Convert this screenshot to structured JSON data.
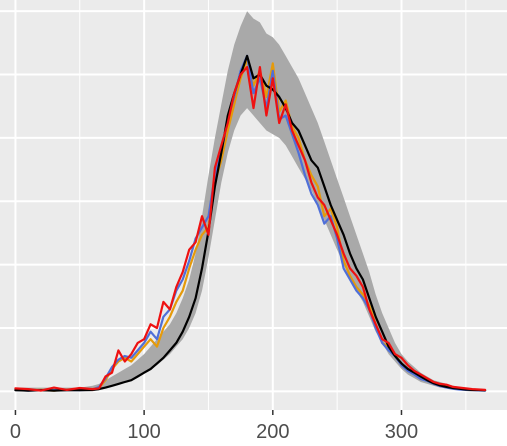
{
  "chart_data": {
    "type": "line",
    "title": "",
    "xlabel": "",
    "ylabel": "",
    "xlim": [
      -12,
      382
    ],
    "ylim": [
      -0.05,
      1.05
    ],
    "x_ticks": [
      0,
      100,
      200,
      300
    ],
    "x_tick_labels": [
      "0",
      "100",
      "200",
      "300"
    ],
    "x_minor_ticks": [
      50,
      150,
      250,
      350
    ],
    "y_grid": [
      0.0,
      0.17,
      0.34,
      0.51,
      0.68,
      0.85,
      1.02
    ],
    "grid": true,
    "legend": "none",
    "background": "#ebebeb",
    "band": {
      "color": "#a9a9a9",
      "x": [
        0,
        10,
        20,
        30,
        40,
        50,
        60,
        65,
        70,
        75,
        80,
        85,
        90,
        95,
        100,
        105,
        110,
        115,
        120,
        125,
        130,
        135,
        140,
        145,
        150,
        155,
        160,
        165,
        170,
        175,
        180,
        185,
        190,
        195,
        200,
        205,
        210,
        215,
        220,
        225,
        230,
        235,
        240,
        245,
        250,
        255,
        260,
        265,
        270,
        275,
        280,
        285,
        290,
        295,
        300,
        305,
        310,
        315,
        320,
        325,
        330,
        335,
        340,
        345,
        350,
        355,
        365
      ],
      "lower": [
        0,
        0,
        0,
        0,
        0,
        0,
        0,
        0.005,
        0.01,
        0.015,
        0.02,
        0.025,
        0.03,
        0.04,
        0.05,
        0.06,
        0.07,
        0.085,
        0.1,
        0.12,
        0.14,
        0.17,
        0.21,
        0.27,
        0.36,
        0.46,
        0.56,
        0.64,
        0.7,
        0.74,
        0.76,
        0.74,
        0.72,
        0.7,
        0.69,
        0.68,
        0.66,
        0.63,
        0.6,
        0.57,
        0.54,
        0.5,
        0.46,
        0.42,
        0.38,
        0.34,
        0.3,
        0.27,
        0.24,
        0.2,
        0.16,
        0.13,
        0.1,
        0.08,
        0.06,
        0.045,
        0.035,
        0.025,
        0.02,
        0.015,
        0.01,
        0.008,
        0.005,
        0.004,
        0.003,
        0.002,
        0
      ],
      "upper": [
        0.01,
        0.01,
        0.01,
        0.01,
        0.01,
        0.01,
        0.015,
        0.02,
        0.03,
        0.04,
        0.05,
        0.06,
        0.07,
        0.085,
        0.1,
        0.12,
        0.14,
        0.16,
        0.18,
        0.21,
        0.25,
        0.3,
        0.37,
        0.47,
        0.58,
        0.68,
        0.77,
        0.86,
        0.93,
        0.98,
        1.02,
        1.0,
        0.99,
        0.96,
        0.95,
        0.93,
        0.9,
        0.87,
        0.84,
        0.8,
        0.76,
        0.72,
        0.67,
        0.62,
        0.57,
        0.52,
        0.47,
        0.42,
        0.37,
        0.32,
        0.26,
        0.21,
        0.17,
        0.13,
        0.1,
        0.08,
        0.065,
        0.05,
        0.04,
        0.03,
        0.025,
        0.02,
        0.015,
        0.012,
        0.01,
        0.008,
        0.006
      ]
    },
    "series": [
      {
        "color": "#e59a0a",
        "x": [
          0,
          10,
          20,
          30,
          40,
          50,
          60,
          65,
          70,
          75,
          80,
          85,
          90,
          95,
          100,
          105,
          110,
          115,
          120,
          125,
          130,
          135,
          140,
          145,
          150,
          155,
          160,
          165,
          170,
          175,
          180,
          185,
          190,
          195,
          200,
          205,
          210,
          215,
          220,
          225,
          230,
          235,
          240,
          245,
          250,
          255,
          260,
          265,
          270,
          275,
          280,
          285,
          290,
          295,
          300,
          305,
          310,
          315,
          320,
          325,
          330,
          335,
          340,
          345,
          350,
          355,
          365
        ],
        "values": [
          0.005,
          0.003,
          0.004,
          0.002,
          0.005,
          0.004,
          0.006,
          0.01,
          0.03,
          0.06,
          0.08,
          0.09,
          0.08,
          0.1,
          0.12,
          0.14,
          0.12,
          0.17,
          0.2,
          0.24,
          0.27,
          0.33,
          0.38,
          0.42,
          0.44,
          0.56,
          0.62,
          0.7,
          0.77,
          0.84,
          0.89,
          0.82,
          0.86,
          0.79,
          0.88,
          0.75,
          0.78,
          0.71,
          0.68,
          0.62,
          0.58,
          0.55,
          0.47,
          0.49,
          0.44,
          0.35,
          0.31,
          0.28,
          0.26,
          0.23,
          0.18,
          0.13,
          0.12,
          0.1,
          0.07,
          0.06,
          0.05,
          0.035,
          0.03,
          0.02,
          0.015,
          0.012,
          0.008,
          0.006,
          0.004,
          0.003,
          0.002
        ]
      },
      {
        "color": "#4f6fd8",
        "x": [
          0,
          10,
          20,
          30,
          40,
          50,
          60,
          65,
          70,
          75,
          80,
          85,
          90,
          95,
          100,
          105,
          110,
          115,
          120,
          125,
          130,
          135,
          140,
          145,
          150,
          155,
          160,
          165,
          170,
          175,
          180,
          185,
          190,
          195,
          200,
          205,
          210,
          215,
          220,
          225,
          230,
          235,
          240,
          245,
          250,
          255,
          260,
          265,
          270,
          275,
          280,
          285,
          290,
          295,
          300,
          305,
          310,
          315,
          320,
          325,
          330,
          335,
          340,
          345,
          350,
          355,
          365
        ],
        "values": [
          0.004,
          0.002,
          0.003,
          0.003,
          0.004,
          0.003,
          0.005,
          0.012,
          0.035,
          0.065,
          0.085,
          0.095,
          0.09,
          0.11,
          0.13,
          0.16,
          0.14,
          0.2,
          0.22,
          0.27,
          0.3,
          0.35,
          0.41,
          0.44,
          0.47,
          0.58,
          0.64,
          0.73,
          0.79,
          0.86,
          0.9,
          0.8,
          0.84,
          0.76,
          0.86,
          0.73,
          0.74,
          0.69,
          0.64,
          0.58,
          0.53,
          0.5,
          0.45,
          0.47,
          0.41,
          0.33,
          0.3,
          0.27,
          0.25,
          0.22,
          0.17,
          0.13,
          0.11,
          0.095,
          0.07,
          0.055,
          0.045,
          0.033,
          0.028,
          0.02,
          0.014,
          0.01,
          0.007,
          0.005,
          0.004,
          0.003,
          0.002
        ]
      },
      {
        "color": "#000000",
        "x": [
          0,
          10,
          20,
          30,
          40,
          50,
          60,
          65,
          70,
          75,
          80,
          85,
          90,
          95,
          100,
          105,
          110,
          115,
          120,
          125,
          130,
          135,
          140,
          145,
          150,
          155,
          160,
          165,
          170,
          175,
          180,
          185,
          190,
          195,
          200,
          205,
          210,
          215,
          220,
          225,
          230,
          235,
          240,
          245,
          250,
          255,
          260,
          265,
          270,
          275,
          280,
          285,
          290,
          295,
          300,
          305,
          310,
          315,
          320,
          325,
          330,
          335,
          340,
          345,
          350,
          355,
          365
        ],
        "values": [
          0.003,
          0.002,
          0.003,
          0.002,
          0.003,
          0.003,
          0.004,
          0.006,
          0.01,
          0.015,
          0.02,
          0.025,
          0.03,
          0.04,
          0.05,
          0.06,
          0.075,
          0.09,
          0.11,
          0.13,
          0.16,
          0.2,
          0.25,
          0.33,
          0.43,
          0.55,
          0.64,
          0.74,
          0.8,
          0.85,
          0.9,
          0.84,
          0.85,
          0.82,
          0.81,
          0.79,
          0.76,
          0.72,
          0.7,
          0.66,
          0.62,
          0.6,
          0.55,
          0.5,
          0.46,
          0.42,
          0.37,
          0.33,
          0.3,
          0.25,
          0.2,
          0.16,
          0.12,
          0.095,
          0.075,
          0.06,
          0.05,
          0.04,
          0.03,
          0.022,
          0.016,
          0.012,
          0.009,
          0.007,
          0.005,
          0.004,
          0.003
        ]
      },
      {
        "color": "#ee1111",
        "x": [
          0,
          10,
          20,
          30,
          40,
          50,
          60,
          65,
          70,
          75,
          80,
          85,
          90,
          95,
          100,
          105,
          110,
          115,
          120,
          125,
          130,
          135,
          140,
          145,
          150,
          155,
          160,
          165,
          170,
          175,
          180,
          185,
          190,
          195,
          200,
          205,
          210,
          215,
          220,
          225,
          230,
          235,
          240,
          245,
          250,
          255,
          260,
          265,
          270,
          275,
          280,
          285,
          290,
          295,
          300,
          305,
          310,
          315,
          320,
          325,
          330,
          335,
          340,
          345,
          350,
          355,
          365
        ],
        "values": [
          0.008,
          0.006,
          0.002,
          0.01,
          0.004,
          0.009,
          0.006,
          0.008,
          0.04,
          0.05,
          0.11,
          0.08,
          0.1,
          0.13,
          0.14,
          0.18,
          0.17,
          0.24,
          0.22,
          0.28,
          0.32,
          0.38,
          0.4,
          0.47,
          0.42,
          0.6,
          0.66,
          0.72,
          0.8,
          0.85,
          0.87,
          0.76,
          0.87,
          0.74,
          0.84,
          0.72,
          0.77,
          0.7,
          0.66,
          0.62,
          0.56,
          0.52,
          0.5,
          0.46,
          0.42,
          0.37,
          0.33,
          0.31,
          0.28,
          0.22,
          0.18,
          0.14,
          0.13,
          0.1,
          0.09,
          0.07,
          0.055,
          0.045,
          0.035,
          0.025,
          0.02,
          0.018,
          0.012,
          0.01,
          0.008,
          0.006,
          0.004
        ]
      }
    ]
  }
}
